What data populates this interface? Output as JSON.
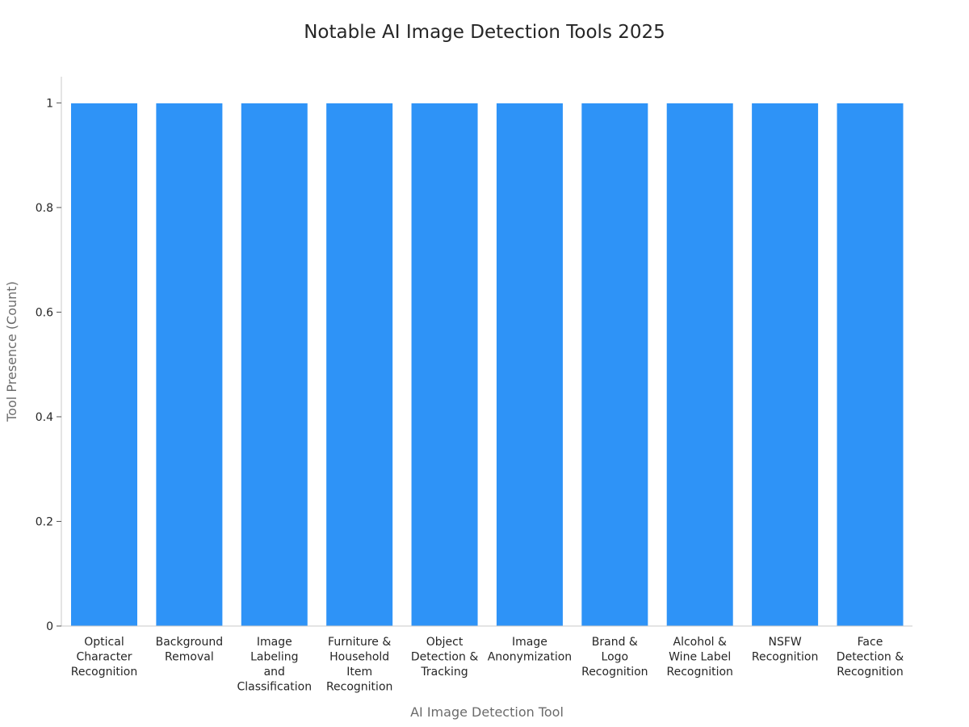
{
  "chart_data": {
    "type": "bar",
    "title": "Notable AI Image Detection Tools 2025",
    "xlabel": "AI Image Detection Tool",
    "ylabel": "Tool Presence (Count)",
    "categories": [
      [
        "Optical",
        "Character",
        "Recognition"
      ],
      [
        "Background",
        "Removal"
      ],
      [
        "Image",
        "Labeling",
        "and",
        "Classification"
      ],
      [
        "Furniture &",
        "Household",
        "Item",
        "Recognition"
      ],
      [
        "Object",
        "Detection &",
        "Tracking"
      ],
      [
        "Image",
        "Anonymization"
      ],
      [
        "Brand &",
        "Logo",
        "Recognition"
      ],
      [
        "Alcohol &",
        "Wine Label",
        "Recognition"
      ],
      [
        "NSFW",
        "Recognition"
      ],
      [
        "Face",
        "Detection &",
        "Recognition"
      ]
    ],
    "values": [
      1,
      1,
      1,
      1,
      1,
      1,
      1,
      1,
      1,
      1
    ],
    "ylim": [
      0,
      1.05
    ],
    "yticks": [
      0,
      0.2,
      0.4,
      0.6,
      0.8,
      1
    ],
    "ytick_labels": [
      "0",
      "0.2",
      "0.4",
      "0.6",
      "0.8",
      "1"
    ],
    "grid": false,
    "legend": "none",
    "bar_color": "#2e93f7"
  }
}
